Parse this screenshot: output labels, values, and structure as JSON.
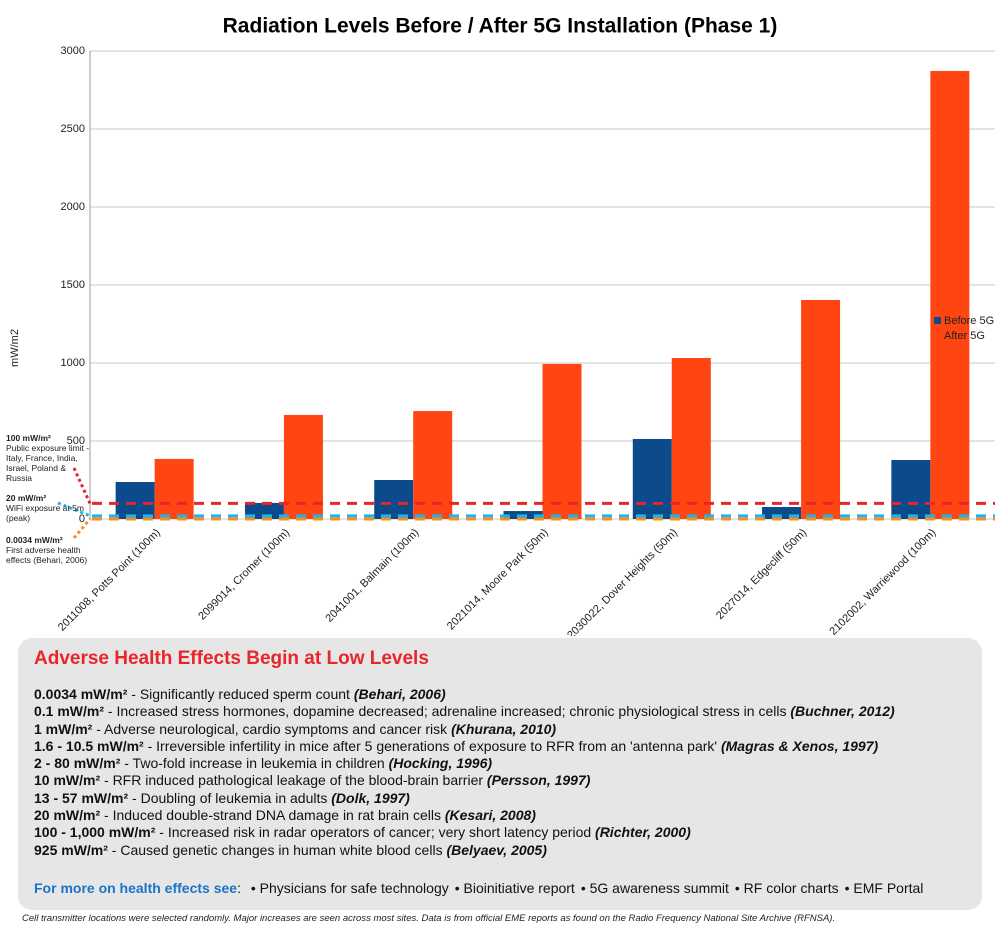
{
  "chart_data": {
    "type": "bar",
    "title": "Radiation Levels Before / After 5G Installation (Phase 1)",
    "y_label": "mW/m2",
    "categories": [
      "2011008, Potts Point (100m)",
      "2099014, Cromer (100m)",
      "2041001, Balmain (100m)",
      "2021014, Moore Park (50m)",
      "2030022, Dover Heights (50m)",
      "2027014, Edgecliff (50m)",
      "2102002, Warriewood (100m)"
    ],
    "series": [
      {
        "name": "Before 5G",
        "color": "#0b4a8b",
        "values": [
          237,
          103,
          250,
          51,
          513,
          77,
          378
        ]
      },
      {
        "name": "After 5G",
        "color": "#ff4512",
        "values": [
          385,
          667,
          692,
          994,
          1032,
          1404,
          2872
        ]
      }
    ],
    "ylim": [
      0,
      3000
    ],
    "yticks": [
      0,
      500,
      1000,
      1500,
      2000,
      2500,
      3000
    ],
    "grid": true,
    "legend": "right",
    "reference_lines": [
      {
        "value": 100,
        "color": "#e8262a",
        "label": "100 mW/m²",
        "note": "Public exposure limit - Italy, France, India, Israel, Poland & Russia"
      },
      {
        "value": 20,
        "color": "#1fb4e6",
        "label": "20 mW/m²",
        "note": "WiFi exposure at 5m (peak)"
      },
      {
        "value": 0.0034,
        "color": "#f39020",
        "label": "0.0034 mW/m²",
        "note": "First adverse health effects (Behari, 2006)"
      }
    ]
  },
  "health_box": {
    "title": "Adverse Health Effects Begin at Low Levels",
    "items": [
      {
        "dose": "0.0034 mW/m²",
        "effect": " - Significantly reduced sperm count ",
        "source": "(Behari, 2006)"
      },
      {
        "dose": "0.1 mW/m²",
        "effect": " - Increased stress hormones, dopamine decreased; adrenaline increased; chronic physiological stress in cells ",
        "source": "(Buchner, 2012)"
      },
      {
        "dose": "1 mW/m²",
        "effect": " - Adverse neurological, cardio symptoms and cancer risk ",
        "source": "(Khurana, 2010)"
      },
      {
        "dose": "1.6 - 10.5 mW/m²",
        "effect": " - Irreversible infertility in mice after 5 generations of exposure to RFR from an 'antenna park' ",
        "source": "(Magras & Xenos, 1997)"
      },
      {
        "dose": "2 - 80 mW/m²",
        "effect": " - Two-fold increase in leukemia in children ",
        "source": "(Hocking, 1996)"
      },
      {
        "dose": "10 mW/m²",
        "effect": " - RFR induced pathological leakage of the blood-brain barrier ",
        "source": "(Persson, 1997)"
      },
      {
        "dose": "13 - 57 mW/m²",
        "effect": " - Doubling of leukemia in adults ",
        "source": "(Dolk, 1997)"
      },
      {
        "dose": "20 mW/m²",
        "effect": " - Induced double-strand DNA damage in rat brain cells ",
        "source": "(Kesari, 2008)"
      },
      {
        "dose": "100 - 1,000 mW/m²",
        "effect": " - Increased risk in radar operators of cancer; very short latency period ",
        "source": "(Richter, 2000)"
      },
      {
        "dose": "925 mW/m²",
        "effect": " - Caused genetic changes in human white blood cells ",
        "source": "(Belyaev, 2005)"
      }
    ],
    "links_label": "For more on health effects see",
    "links_colon": ":",
    "links": [
      "• Physicians for safe technology",
      "• Bioinitiative report",
      "• 5G awareness summit",
      "• RF color charts",
      "• EMF Portal"
    ]
  },
  "footnote": "Cell transmitter locations were selected randomly. Major increases are seen across most sites. Data is from official EME reports as found on the Radio Frequency National Site Archive (RFNSA)."
}
